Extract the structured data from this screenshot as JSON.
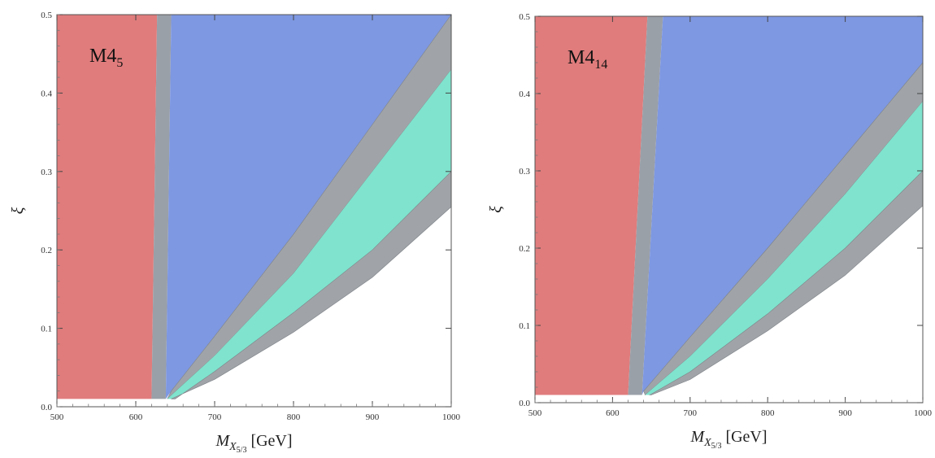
{
  "chart_data": [
    {
      "type": "area",
      "panel_label": "M4",
      "panel_label_sub": "5",
      "xlabel_main": "M",
      "xlabel_sub": "X",
      "xlabel_subsub": "5/3",
      "xlabel_unit": "[GeV]",
      "ylabel": "ξ",
      "xlim": [
        500,
        1000
      ],
      "ylim": [
        0,
        0.5
      ],
      "x_ticks": [
        "500",
        "600",
        "700",
        "800",
        "900",
        "1000"
      ],
      "y_ticks": [
        "0.0",
        "0.1",
        "0.2",
        "0.3",
        "0.4",
        "0.5"
      ],
      "colors": {
        "red": "#e07c7c",
        "gray": "#9aa0a8",
        "blue": "#7e98e2",
        "teal": "#7fe3cd",
        "gray_band": "#a0a4a8"
      },
      "regions": [
        {
          "fill": "red",
          "points": [
            [
              500,
              0.01
            ],
            [
              500,
              0.5
            ],
            [
              627,
              0.5
            ],
            [
              620,
              0.01
            ]
          ]
        },
        {
          "fill": "gray",
          "points": [
            [
              620,
              0.01
            ],
            [
              627,
              0.5
            ],
            [
              645,
              0.5
            ],
            [
              638,
              0.01
            ]
          ]
        },
        {
          "fill": "blue",
          "points": [
            [
              638,
              0.01
            ],
            [
              645,
              0.5
            ],
            [
              1000,
              0.5
            ],
            [
              1000,
              0.5
            ],
            [
              900,
              0.36
            ],
            [
              800,
              0.22
            ],
            [
              700,
              0.09
            ],
            [
              645,
              0.02
            ],
            [
              638,
              0.01
            ]
          ]
        },
        {
          "fill": "gray_band",
          "points": [
            [
              645,
              0.02
            ],
            [
              700,
              0.09
            ],
            [
              800,
              0.22
            ],
            [
              900,
              0.36
            ],
            [
              1000,
              0.5
            ],
            [
              1000,
              0.43
            ],
            [
              900,
              0.3
            ],
            [
              800,
              0.17
            ],
            [
              700,
              0.065
            ],
            [
              640,
              0.01
            ]
          ]
        },
        {
          "fill": "teal",
          "points": [
            [
              640,
              0.01
            ],
            [
              700,
              0.065
            ],
            [
              800,
              0.17
            ],
            [
              900,
              0.3
            ],
            [
              1000,
              0.43
            ],
            [
              1000,
              0.3
            ],
            [
              900,
              0.2
            ],
            [
              800,
              0.12
            ],
            [
              700,
              0.045
            ],
            [
              650,
              0.01
            ]
          ]
        },
        {
          "fill": "gray_band",
          "points": [
            [
              650,
              0.01
            ],
            [
              700,
              0.045
            ],
            [
              800,
              0.12
            ],
            [
              900,
              0.2
            ],
            [
              1000,
              0.3
            ],
            [
              1000,
              0.255
            ],
            [
              900,
              0.165
            ],
            [
              800,
              0.095
            ],
            [
              700,
              0.035
            ],
            [
              645,
              0.01
            ]
          ]
        }
      ]
    },
    {
      "type": "area",
      "panel_label": "M4",
      "panel_label_sub": "14",
      "xlabel_main": "M",
      "xlabel_sub": "X",
      "xlabel_subsub": "5/3",
      "xlabel_unit": "[GeV]",
      "ylabel": "ξ",
      "xlim": [
        500,
        1000
      ],
      "ylim": [
        0,
        0.5
      ],
      "x_ticks": [
        "500",
        "600",
        "700",
        "800",
        "900",
        "1000"
      ],
      "y_ticks": [
        "0.0",
        "0.1",
        "0.2",
        "0.3",
        "0.4",
        "0.5"
      ],
      "colors": {
        "red": "#e07c7c",
        "gray": "#9aa0a8",
        "blue": "#7e98e2",
        "teal": "#7fe3cd",
        "gray_band": "#a0a4a8"
      },
      "regions": [
        {
          "fill": "red",
          "points": [
            [
              500,
              0.01
            ],
            [
              500,
              0.5
            ],
            [
              645,
              0.5
            ],
            [
              620,
              0.01
            ]
          ]
        },
        {
          "fill": "gray",
          "points": [
            [
              620,
              0.01
            ],
            [
              645,
              0.5
            ],
            [
              665,
              0.5
            ],
            [
              638,
              0.01
            ]
          ]
        },
        {
          "fill": "blue",
          "points": [
            [
              638,
              0.01
            ],
            [
              665,
              0.5
            ],
            [
              1000,
              0.5
            ],
            [
              1000,
              0.44
            ],
            [
              900,
              0.32
            ],
            [
              800,
              0.2
            ],
            [
              700,
              0.085
            ],
            [
              640,
              0.015
            ],
            [
              638,
              0.01
            ]
          ]
        },
        {
          "fill": "gray_band",
          "points": [
            [
              640,
              0.015
            ],
            [
              700,
              0.085
            ],
            [
              800,
              0.2
            ],
            [
              900,
              0.32
            ],
            [
              1000,
              0.44
            ],
            [
              1000,
              0.39
            ],
            [
              900,
              0.27
            ],
            [
              800,
              0.16
            ],
            [
              700,
              0.06
            ],
            [
              642,
              0.01
            ]
          ]
        },
        {
          "fill": "teal",
          "points": [
            [
              642,
              0.01
            ],
            [
              700,
              0.06
            ],
            [
              800,
              0.16
            ],
            [
              900,
              0.27
            ],
            [
              1000,
              0.39
            ],
            [
              1000,
              0.3
            ],
            [
              900,
              0.2
            ],
            [
              800,
              0.115
            ],
            [
              700,
              0.04
            ],
            [
              648,
              0.01
            ]
          ]
        },
        {
          "fill": "gray_band",
          "points": [
            [
              648,
              0.01
            ],
            [
              700,
              0.04
            ],
            [
              800,
              0.115
            ],
            [
              900,
              0.2
            ],
            [
              1000,
              0.3
            ],
            [
              1000,
              0.255
            ],
            [
              900,
              0.165
            ],
            [
              800,
              0.093
            ],
            [
              700,
              0.03
            ],
            [
              650,
              0.01
            ]
          ]
        }
      ]
    }
  ]
}
